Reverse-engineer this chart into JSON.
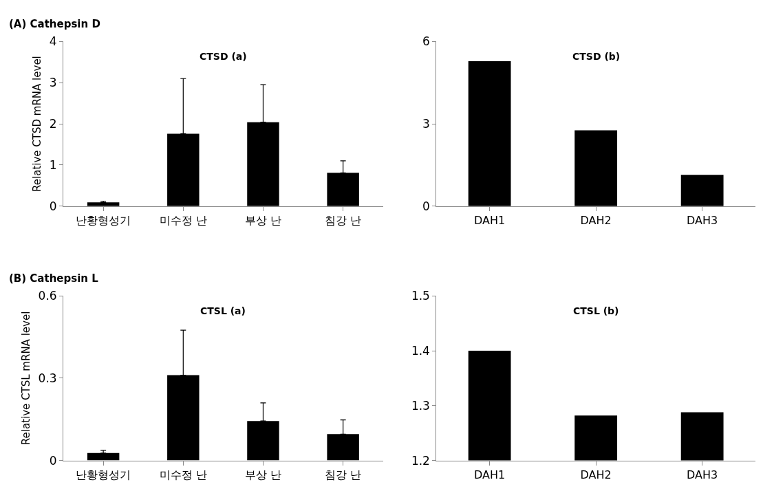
{
  "chart_data": [
    {
      "type": "bar",
      "title": "(A) Cathepsin D",
      "subtitle": "CTSD (a)",
      "ylabel": "Relative CTSD mRNA level",
      "categories": [
        "난황형성기",
        "미수정 난",
        "부상 난",
        "침강 난"
      ],
      "values": [
        0.09,
        1.76,
        2.04,
        0.81
      ],
      "errors": [
        [
          0.09,
          0.12
        ],
        [
          1.76,
          3.1
        ],
        [
          2.04,
          2.95
        ],
        [
          0.81,
          1.1
        ]
      ],
      "color": "#000000",
      "ylim": [
        0,
        4
      ],
      "yticks": [
        0,
        1,
        2,
        3,
        4
      ]
    },
    {
      "type": "bar",
      "subtitle": "CTSD (b)",
      "categories": [
        "DAH1",
        "DAH2",
        "DAH3"
      ],
      "values": [
        5.28,
        2.76,
        1.14
      ],
      "color": "#000000",
      "ylim": [
        0,
        6
      ],
      "yticks": [
        0,
        3,
        6
      ]
    },
    {
      "type": "bar",
      "title": "(B) Cathepsin L",
      "subtitle": "CTSL (a)",
      "ylabel": "Relative CTSL mRNA level",
      "categories": [
        "난황형성기",
        "미수정 난",
        "부상 난",
        "침강 난"
      ],
      "values": [
        0.027,
        0.311,
        0.144,
        0.096
      ],
      "errors": [
        [
          0.027,
          0.037
        ],
        [
          0.311,
          0.475
        ],
        [
          0.144,
          0.21
        ],
        [
          0.096,
          0.148
        ]
      ],
      "color": "#000000",
      "ylim": [
        0,
        0.6
      ],
      "yticks": [
        0,
        0.3,
        0.6
      ]
    },
    {
      "type": "bar",
      "subtitle": "CTSL (b)",
      "categories": [
        "DAH1",
        "DAH2",
        "DAH3"
      ],
      "values": [
        1.4,
        1.282,
        1.288
      ],
      "color": "#000000",
      "ylim": [
        1.2,
        1.5
      ],
      "yticks": [
        1.2,
        1.3,
        1.4,
        1.5
      ]
    }
  ]
}
